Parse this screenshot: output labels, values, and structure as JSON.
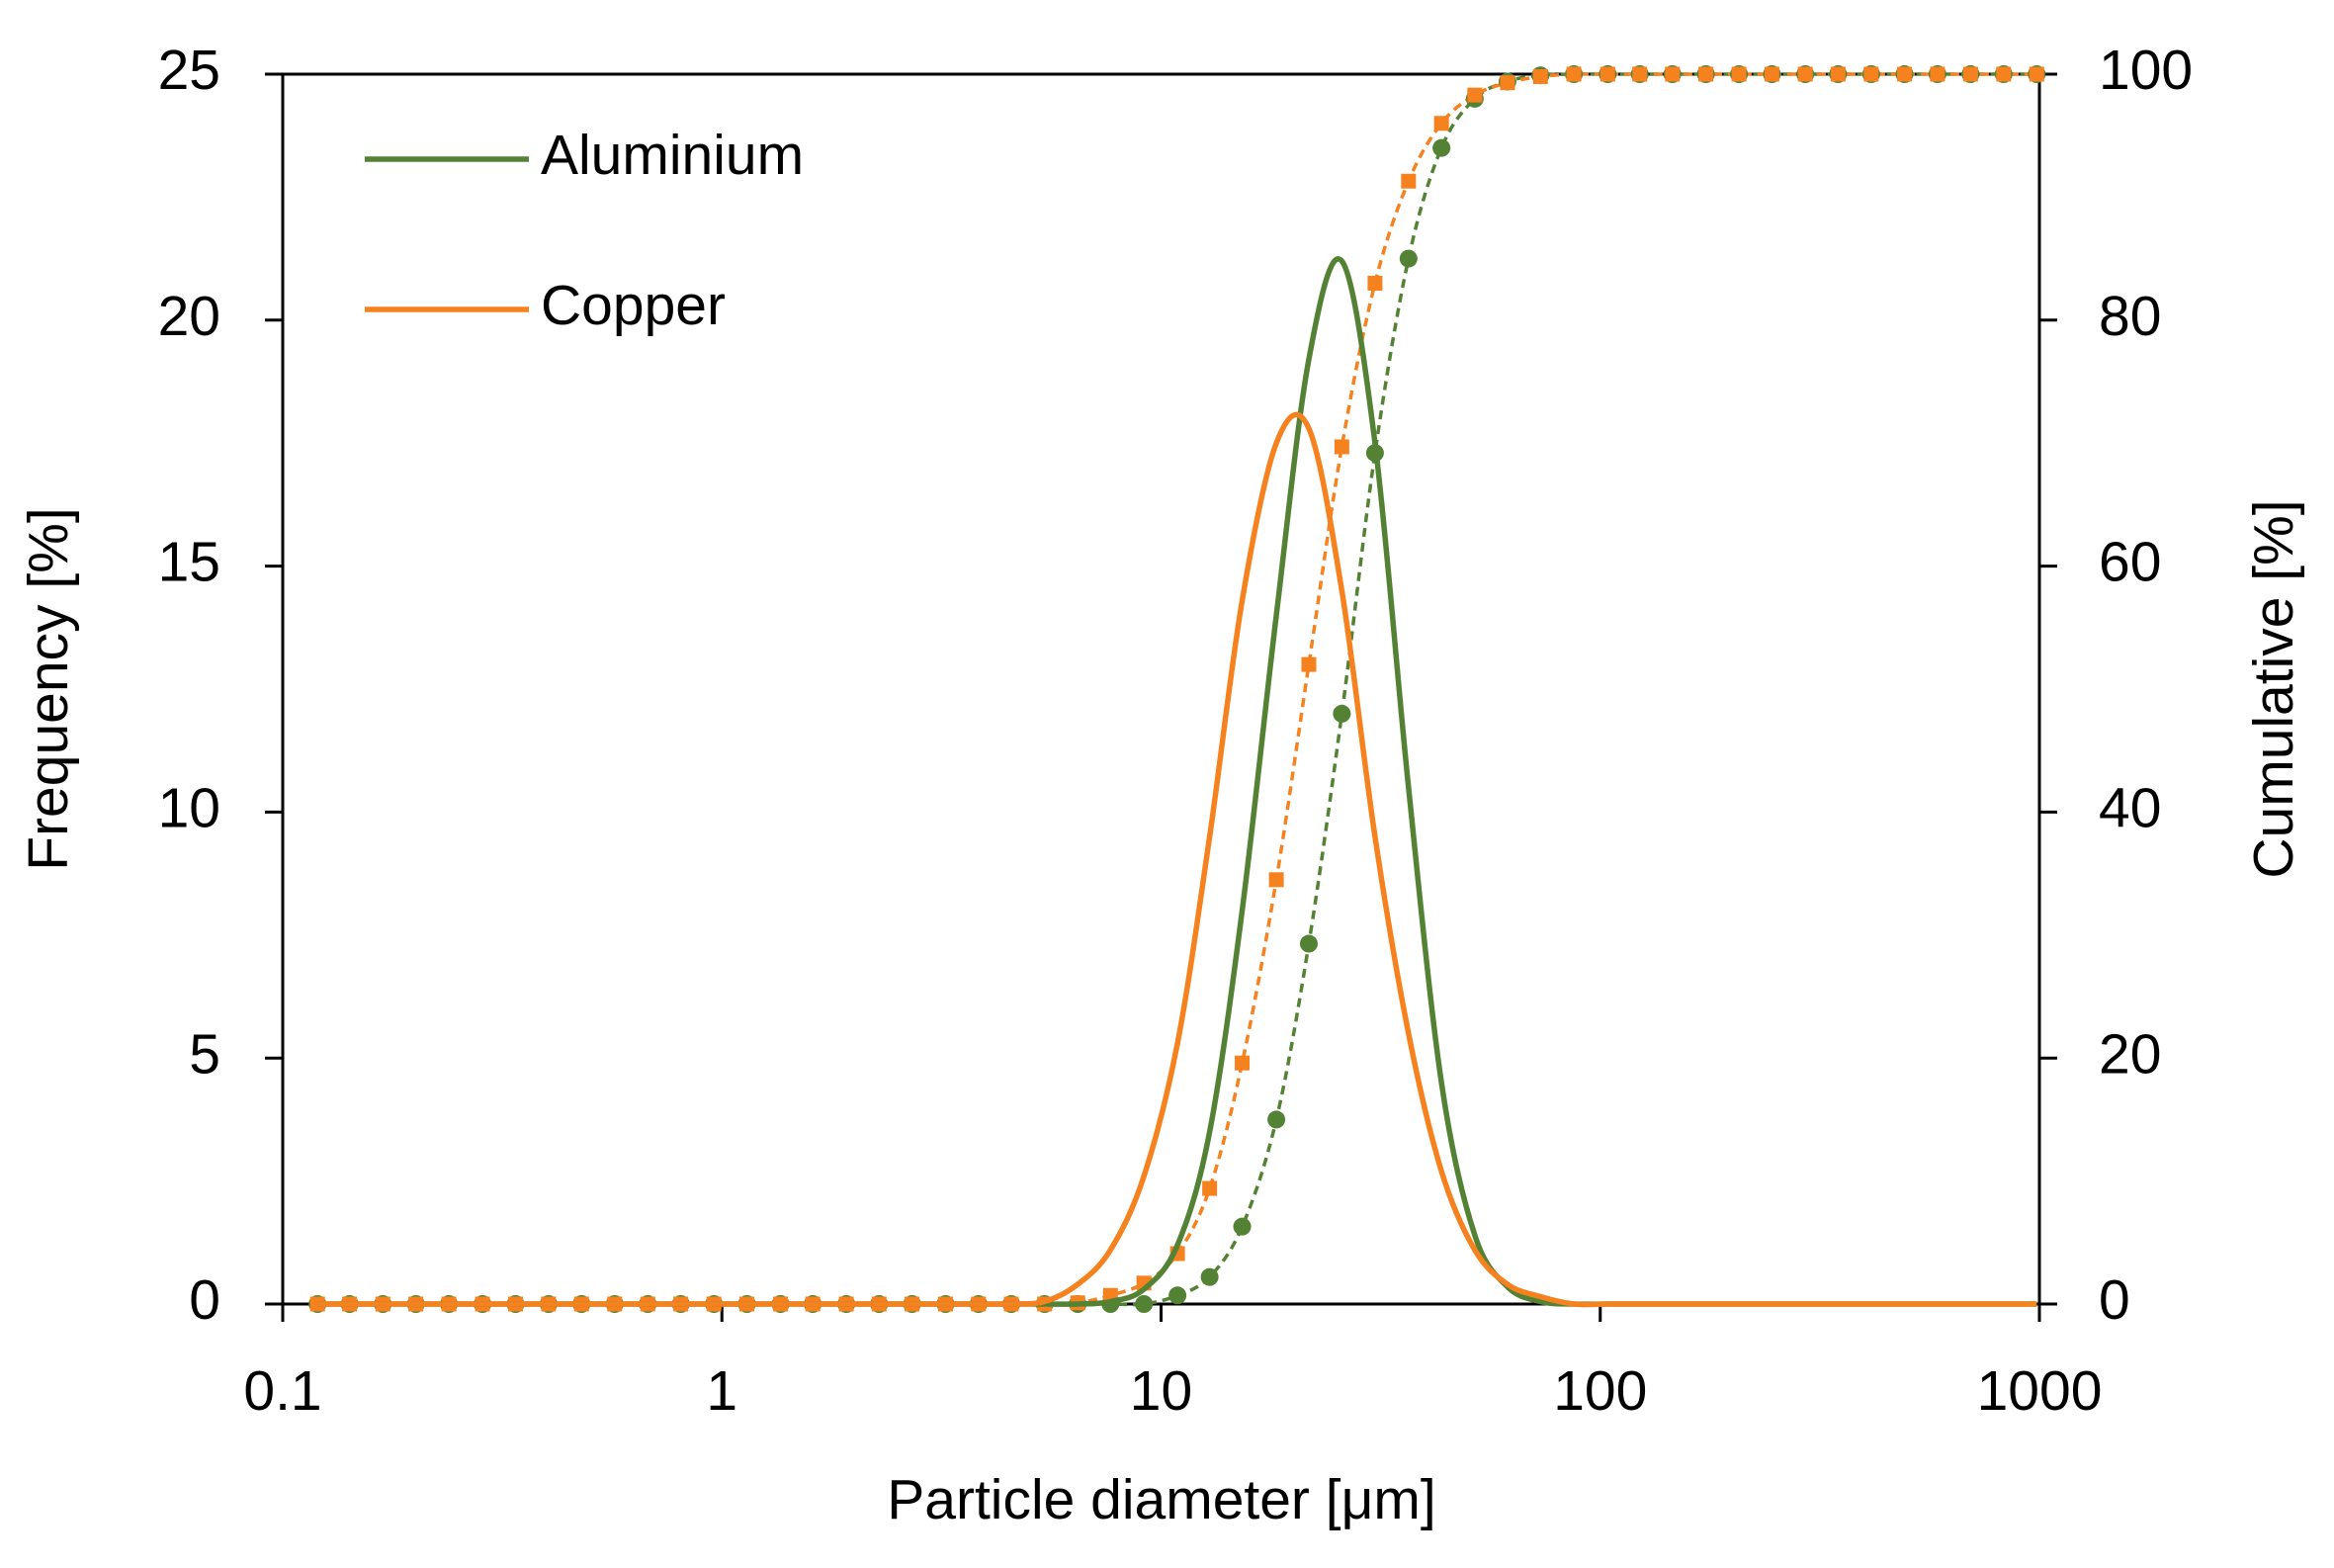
{
  "chart_data": {
    "type": "line",
    "x_label": "Particle diameter [μm]",
    "y_label": "Frequency [%]",
    "y2_label": "Cumulative [%]",
    "xscale": "log",
    "xlim": [
      0.1,
      1000
    ],
    "xticks": [
      0.1,
      1,
      10,
      100,
      1000
    ],
    "ylim": [
      0,
      25
    ],
    "yticks": [
      0,
      5,
      10,
      15,
      20,
      25
    ],
    "y2lim": [
      0,
      100
    ],
    "y2ticks": [
      0,
      20,
      40,
      60,
      80,
      100
    ],
    "legend": "upper left",
    "x": [
      0.12,
      0.142,
      0.169,
      0.201,
      0.239,
      0.285,
      0.339,
      0.403,
      0.479,
      0.57,
      0.678,
      0.806,
      0.959,
      1.14,
      1.36,
      1.61,
      1.92,
      2.28,
      2.71,
      3.23,
      3.84,
      4.56,
      5.43,
      6.46,
      7.67,
      9.14,
      10.9,
      12.9,
      15.3,
      18.3,
      21.7,
      25.8,
      30.7,
      36.6,
      43.5,
      51.8,
      61.5,
      73.1,
      87.1,
      104,
      123,
      146,
      174,
      207,
      246,
      293,
      348,
      414,
      493,
      586,
      697,
      829,
      986
    ],
    "series": [
      {
        "name": "Aluminium",
        "color": "#548235",
        "values": [
          0,
          0,
          0,
          0,
          0,
          0,
          0,
          0,
          0,
          0,
          0,
          0,
          0,
          0,
          0,
          0,
          0,
          0,
          0,
          0,
          0,
          0,
          0,
          0,
          0.05,
          0.3,
          1.2,
          3.5,
          8.0,
          14.0,
          19.2,
          21.2,
          17.5,
          10.5,
          4.5,
          1.4,
          0.35,
          0.05,
          0,
          0,
          0,
          0,
          0,
          0,
          0,
          0,
          0,
          0,
          0,
          0,
          0,
          0,
          0
        ],
        "cumulative": [
          0,
          0,
          0,
          0,
          0,
          0,
          0,
          0,
          0,
          0,
          0,
          0,
          0,
          0,
          0,
          0,
          0,
          0,
          0,
          0,
          0,
          0,
          0,
          0,
          0,
          0,
          0.7,
          2.2,
          6.3,
          15,
          29.3,
          48,
          69.2,
          85,
          94,
          98,
          99.4,
          99.9,
          100,
          100,
          100,
          100,
          100,
          100,
          100,
          100,
          100,
          100,
          100,
          100,
          100,
          100,
          100
        ]
      },
      {
        "name": "Copper",
        "color": "#f5821f",
        "values": [
          0,
          0,
          0,
          0,
          0,
          0,
          0,
          0,
          0,
          0,
          0,
          0,
          0,
          0,
          0,
          0,
          0,
          0,
          0,
          0,
          0,
          0,
          0.05,
          0.4,
          1.1,
          2.6,
          5.3,
          9.5,
          14.3,
          17.5,
          17.8,
          14.5,
          9.5,
          5.5,
          2.7,
          1.1,
          0.4,
          0.15,
          0,
          0,
          0,
          0,
          0,
          0,
          0,
          0,
          0,
          0,
          0,
          0,
          0,
          0,
          0
        ],
        "cumulative": [
          0,
          0,
          0,
          0,
          0,
          0,
          0,
          0,
          0,
          0,
          0,
          0,
          0,
          0,
          0,
          0,
          0,
          0,
          0,
          0,
          0,
          0,
          0,
          0.1,
          0.7,
          1.7,
          4.1,
          9.4,
          19.6,
          34.5,
          52,
          69.7,
          83,
          91.3,
          96,
          98.3,
          99.3,
          99.8,
          100,
          100,
          100,
          100,
          100,
          100,
          100,
          100,
          100,
          100,
          100,
          100,
          100,
          100,
          100
        ]
      }
    ]
  }
}
